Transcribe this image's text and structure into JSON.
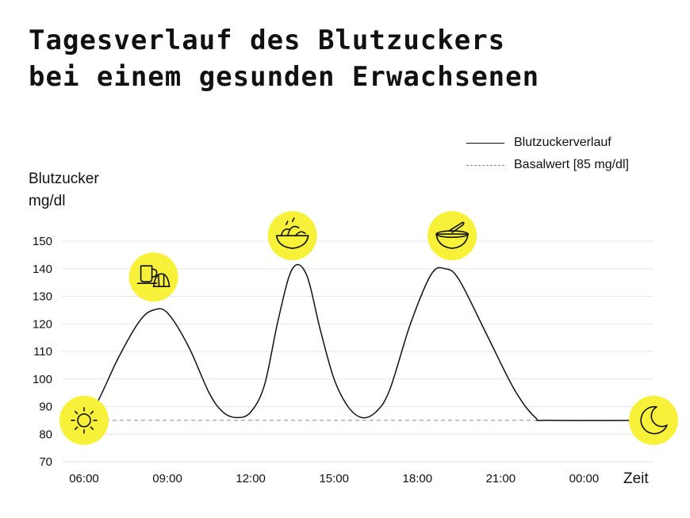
{
  "title": {
    "line1": "Tagesverlauf des Blutzuckers",
    "line2": "bei einem gesunden Erwachsenen"
  },
  "chart_data": {
    "type": "line",
    "ylabel_line1": "Blutzucker",
    "ylabel_line2": "mg/dl",
    "xlabel": "Zeit",
    "ylim": [
      70,
      150
    ],
    "yticks": [
      70,
      80,
      90,
      100,
      110,
      120,
      130,
      140,
      150
    ],
    "xticks": [
      "06:00",
      "09:00",
      "12:00",
      "15:00",
      "18:00",
      "21:00",
      "00:00"
    ],
    "x_hours_range": [
      "06:00",
      "02:30"
    ],
    "grid": true,
    "legend_position": "top-right",
    "series": [
      {
        "name": "Blutzuckerverlauf",
        "style": "solid",
        "color": "#111111",
        "points": [
          [
            "06:00",
            85
          ],
          [
            "06:30",
            92
          ],
          [
            "07:15",
            108
          ],
          [
            "08:00",
            121
          ],
          [
            "08:30",
            125
          ],
          [
            "09:00",
            124
          ],
          [
            "09:45",
            112
          ],
          [
            "10:30",
            95
          ],
          [
            "11:00",
            88
          ],
          [
            "11:30",
            86
          ],
          [
            "12:00",
            88
          ],
          [
            "12:30",
            98
          ],
          [
            "13:00",
            122
          ],
          [
            "13:30",
            140
          ],
          [
            "14:00",
            138
          ],
          [
            "14:30",
            118
          ],
          [
            "15:00",
            100
          ],
          [
            "15:30",
            90
          ],
          [
            "16:00",
            86
          ],
          [
            "16:30",
            88
          ],
          [
            "17:00",
            96
          ],
          [
            "17:45",
            120
          ],
          [
            "18:30",
            138
          ],
          [
            "19:00",
            140
          ],
          [
            "19:30",
            136
          ],
          [
            "20:30",
            116
          ],
          [
            "21:30",
            96
          ],
          [
            "22:15",
            86
          ],
          [
            "22:45",
            85
          ],
          [
            "02:30",
            85
          ]
        ]
      },
      {
        "name": "Basalwert [85 mg/dl]",
        "style": "dashed",
        "color": "#888888",
        "value": 85
      }
    ],
    "icons": [
      {
        "name": "sun-icon",
        "time": "06:00",
        "value": 85
      },
      {
        "name": "breakfast-icon",
        "time": "08:30",
        "value": 137
      },
      {
        "name": "lunch-salad-icon",
        "time": "13:30",
        "value": 152
      },
      {
        "name": "dinner-bowl-icon",
        "time": "19:15",
        "value": 152
      },
      {
        "name": "moon-icon",
        "time": "02:30",
        "value": 85
      }
    ],
    "accent_color": "#f7f13a"
  }
}
